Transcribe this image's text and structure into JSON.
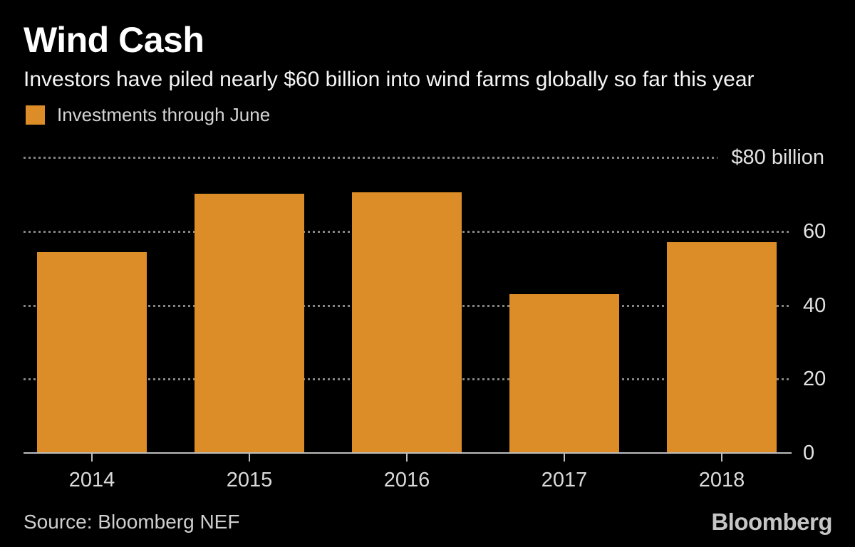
{
  "header": {
    "title": "Wind Cash",
    "subtitle": "Investors have piled nearly $60 billion into wind farms globally so far this year"
  },
  "legend": {
    "label": "Investments through June",
    "swatch_color": "#DD8D27"
  },
  "chart_data": {
    "type": "bar",
    "title": "Wind Cash",
    "subtitle": "Investors have piled nearly $60 billion into wind farms globally so far this year",
    "series_name": "Investments through June",
    "categories": [
      "2014",
      "2015",
      "2016",
      "2017",
      "2018"
    ],
    "values": [
      54.4,
      70.2,
      70.6,
      43.0,
      57.1
    ],
    "unit": "billion USD",
    "ylim": [
      0,
      80
    ],
    "yticks": [
      0,
      20,
      40,
      60,
      80
    ],
    "ytick_labels": [
      "0",
      "20",
      "40",
      "60",
      "$80 billion"
    ],
    "grid": "horizontal dotted",
    "legend_position": "top-left",
    "bar_color": "#DD8D27",
    "background_color": "#000000"
  },
  "footer": {
    "source": "Source: Bloomberg NEF",
    "brand": "Bloomberg"
  }
}
